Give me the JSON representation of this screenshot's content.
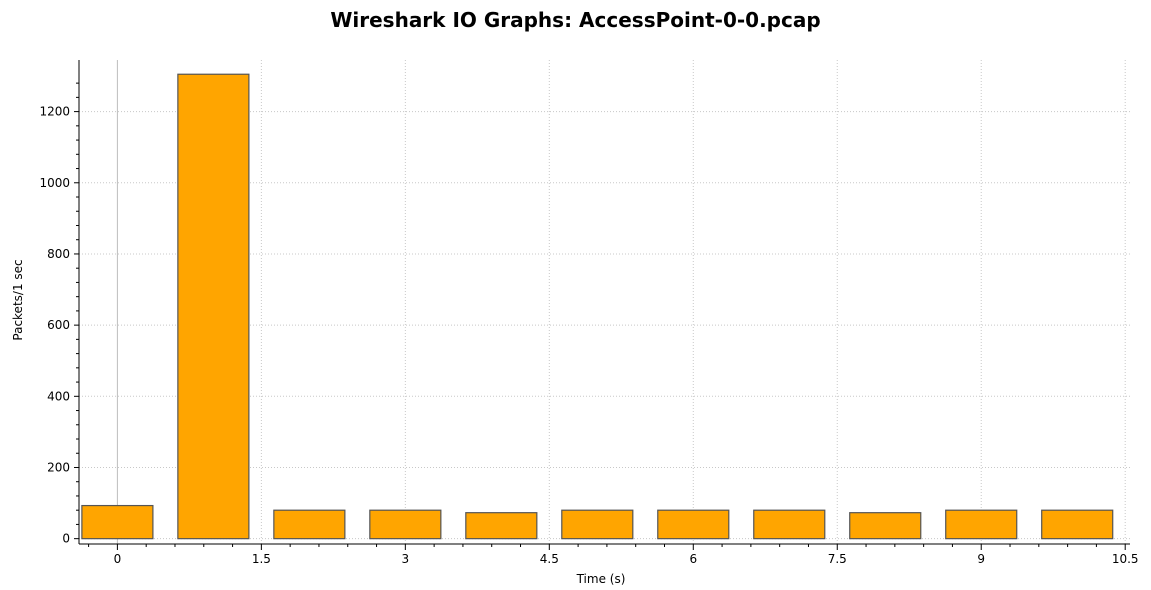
{
  "chart_data": {
    "type": "bar",
    "title": "Wireshark IO Graphs: AccessPoint-0-0.pcap",
    "xlabel": "Time (s)",
    "ylabel": "Packets/1 sec",
    "x": [
      0,
      1,
      2,
      3,
      4,
      5,
      6,
      7,
      8,
      9,
      10
    ],
    "values": [
      93,
      1305,
      80,
      80,
      73,
      80,
      80,
      80,
      73,
      80,
      80
    ],
    "xlim": [
      -0.4,
      10.55
    ],
    "ylim": [
      -15,
      1345
    ],
    "xticks": [
      0,
      1.5,
      3,
      4.5,
      6,
      7.5,
      9,
      10.5
    ],
    "xtick_labels": [
      "0",
      "1.5",
      "3",
      "4.5",
      "6",
      "7.5",
      "9",
      "10.5"
    ],
    "yticks": [
      0,
      200,
      400,
      600,
      800,
      1000,
      1200
    ],
    "ytick_labels": [
      "0",
      "200",
      "400",
      "600",
      "800",
      "1000",
      "1200"
    ],
    "grid": true,
    "bar_color": "#FFA500",
    "bar_edge_color": "#555555"
  }
}
